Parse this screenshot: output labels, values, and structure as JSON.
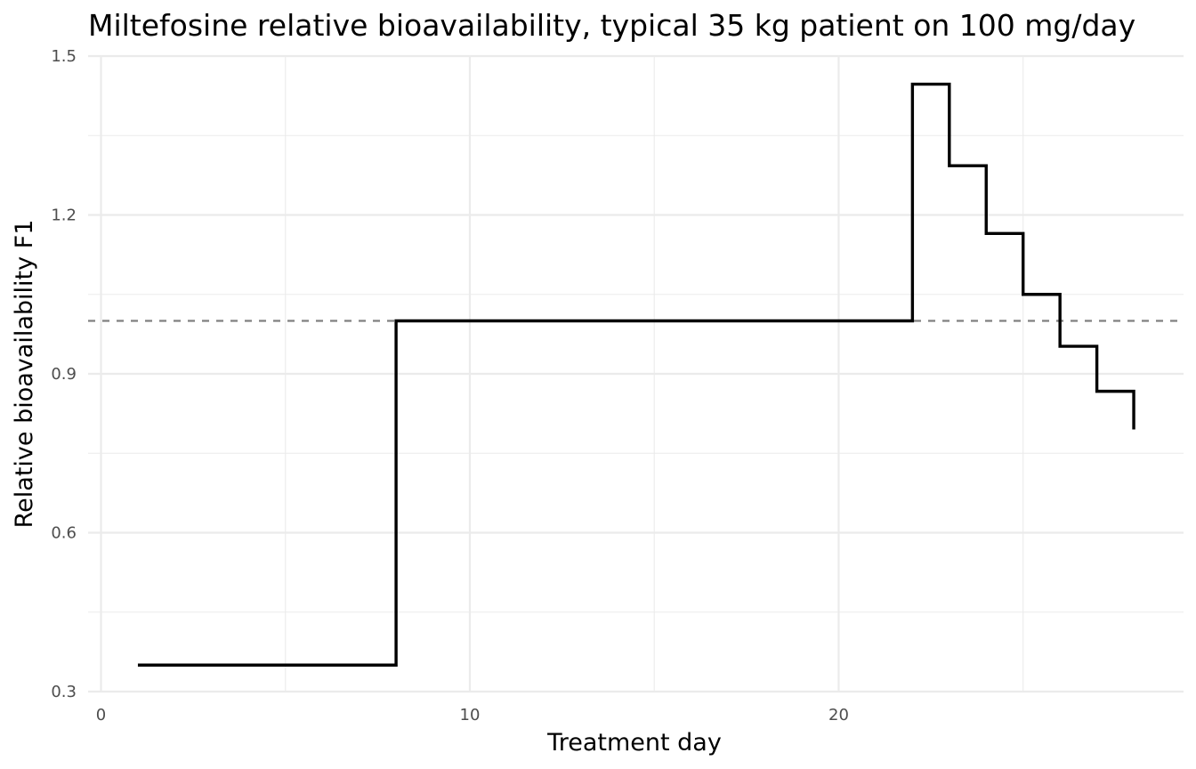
{
  "chart_data": {
    "type": "line",
    "step": "hv",
    "title": "Miltefosine relative bioavailability, typical 35 kg patient on 100 mg/day",
    "xlabel": "Treatment day",
    "ylabel": "Relative bioavailability F1",
    "xlim": [
      -0.35,
      29.35
    ],
    "ylim": [
      0.3,
      1.5
    ],
    "x_ticks": [
      0,
      10,
      20
    ],
    "x_tick_labels": [
      "0",
      "10",
      "20"
    ],
    "y_ticks": [
      0.3,
      0.6,
      0.9,
      1.2,
      1.5
    ],
    "y_tick_labels": [
      "0.3",
      "0.6",
      "0.9",
      "1.2",
      "1.5"
    ],
    "grid": true,
    "reference_line": {
      "y": 1.0,
      "style": "dashed",
      "color": "#808080"
    },
    "series": [
      {
        "color": "#000000",
        "x": [
          1,
          2,
          3,
          4,
          5,
          6,
          7,
          8,
          9,
          10,
          11,
          12,
          13,
          14,
          15,
          16,
          17,
          18,
          19,
          20,
          21,
          22,
          23,
          24,
          25,
          26,
          27,
          28
        ],
        "y": [
          0.35,
          0.35,
          0.35,
          0.35,
          0.35,
          0.35,
          0.35,
          1.0,
          1.0,
          1.0,
          1.0,
          1.0,
          1.0,
          1.0,
          1.0,
          1.0,
          1.0,
          1.0,
          1.0,
          1.0,
          1.0,
          1.447,
          1.293,
          1.165,
          1.05,
          0.952,
          0.867,
          0.795
        ]
      }
    ]
  }
}
